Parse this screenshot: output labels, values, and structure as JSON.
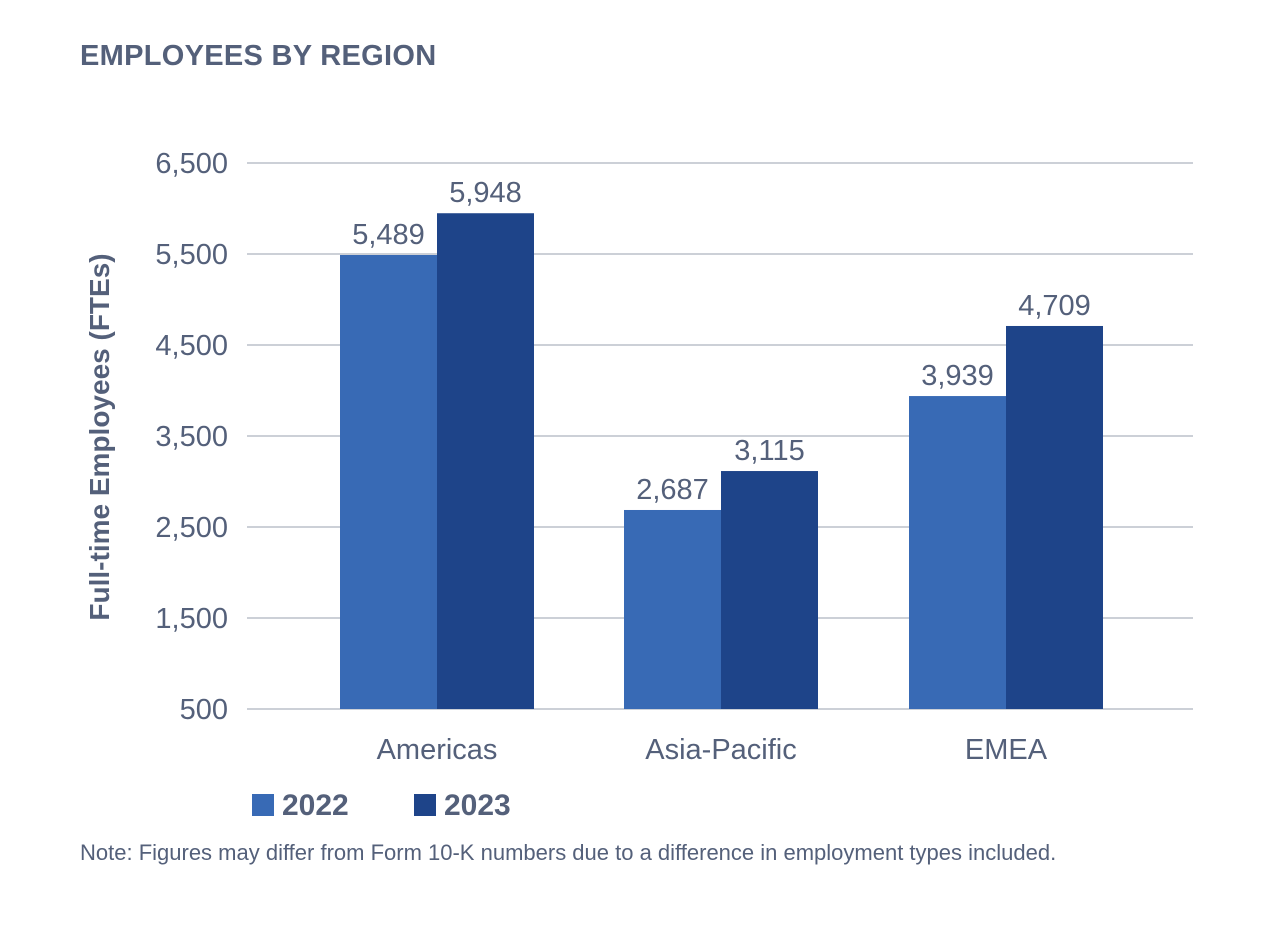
{
  "title": "EMPLOYEES BY REGION",
  "note": "Note: Figures may differ from Form 10-K numbers due to a difference in employment types included.",
  "colors": {
    "series_2022": "#386ab5",
    "series_2023": "#1e4489",
    "text": "#54607a",
    "grid": "#aeb3bf"
  },
  "chart_data": {
    "type": "bar",
    "title": "EMPLOYEES BY REGION",
    "xlabel": "",
    "ylabel": "Full-time Employees (FTEs)",
    "categories": [
      "Americas",
      "Asia-Pacific",
      "EMEA"
    ],
    "series": [
      {
        "name": "2022",
        "values": [
          5489,
          2687,
          3939
        ],
        "labels": [
          "5,489",
          "2,687",
          "3,939"
        ],
        "color": "#386ab5"
      },
      {
        "name": "2023",
        "values": [
          5948,
          3115,
          4709
        ],
        "labels": [
          "5,948",
          "3,115",
          "4,709"
        ],
        "color": "#1e4489"
      }
    ],
    "ylim": [
      500,
      6500
    ],
    "yticks": [
      500,
      1500,
      2500,
      3500,
      4500,
      5500,
      6500
    ],
    "ytick_labels": [
      "500",
      "1,500",
      "2,500",
      "3,500",
      "4,500",
      "5,500",
      "6,500"
    ],
    "grid": true,
    "legend_position": "bottom-left"
  }
}
